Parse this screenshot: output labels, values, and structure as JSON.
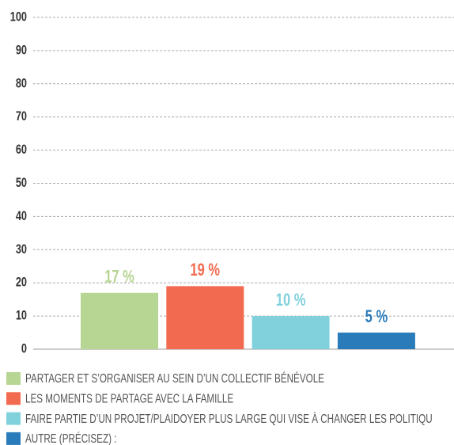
{
  "chart_data": {
    "type": "bar",
    "series": [
      {
        "name": "PARTAGER ET S’ORGANISER AU SEIN D’UN COLLECTIF BÉNÉVOLE",
        "color": "#b7d593",
        "values": [
          17
        ],
        "value_labels": [
          "17 %"
        ]
      },
      {
        "name": "LES MOMENTS DE PARTAGE AVEC LA FAMILLE",
        "color": "#f26a4f",
        "values": [
          19
        ],
        "value_labels": [
          "19 %"
        ]
      },
      {
        "name": "FAIRE PARTIE D’UN PROJET/PLAIDOYER PLUS LARGE QUI VISE À CHANGER LES POLITIQU",
        "color": "#80d1dc",
        "values": [
          10
        ],
        "value_labels": [
          "10 %"
        ]
      },
      {
        "name": "AUTRE (PRÉCISEZ) :",
        "color": "#2a7bb9",
        "values": [
          5
        ],
        "value_labels": [
          "5 %"
        ]
      }
    ],
    "ylim": [
      0,
      100
    ],
    "yticks": [
      0,
      10,
      20,
      30,
      40,
      50,
      60,
      70,
      80,
      90,
      100
    ],
    "grid": true
  }
}
